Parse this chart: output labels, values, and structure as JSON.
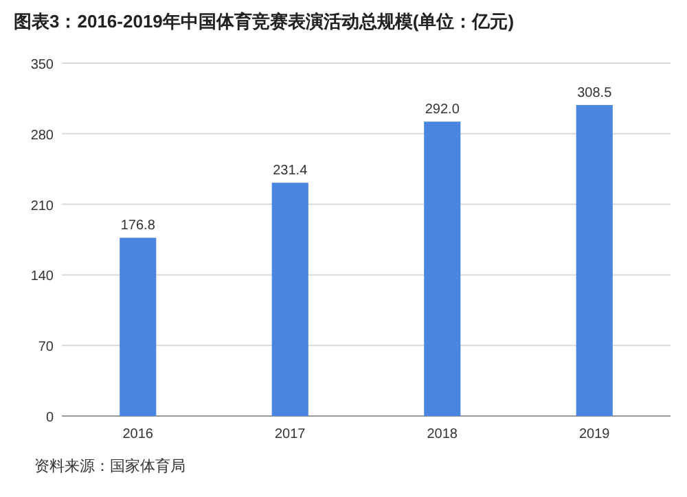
{
  "chart_data": {
    "type": "bar",
    "title": "图表3：2016-2019年中国体育竞赛表演活动总规模(单位：亿元)",
    "categories": [
      "2016",
      "2017",
      "2018",
      "2019"
    ],
    "values": [
      176.8,
      231.4,
      292.0,
      308.5
    ],
    "value_labels": [
      "176.8",
      "231.4",
      "292.0",
      "308.5"
    ],
    "color": "#4a86e0",
    "ylim": [
      0,
      350
    ],
    "yticks": [
      0,
      70,
      140,
      210,
      280,
      350
    ],
    "grid": "y",
    "annotations": [
      "资料来源：国家体育局"
    ]
  }
}
